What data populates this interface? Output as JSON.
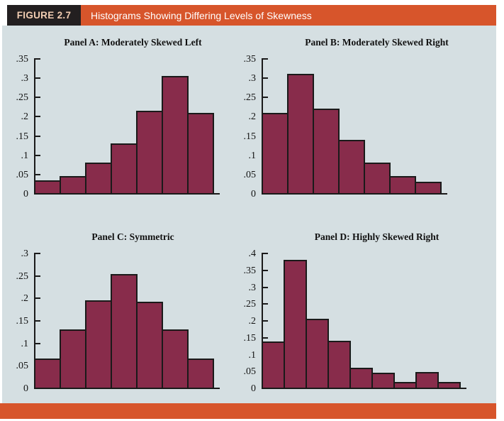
{
  "header": {
    "figure_label": "FIGURE 2.7",
    "title": "Histograms Showing Differing Levels of Skewness"
  },
  "colors": {
    "header_bg": "#231F20",
    "accent_orange": "#D7552B",
    "figure_label_text": "#F2CDB2",
    "title_text": "#FFFFFF",
    "content_bg": "#D5DFE2",
    "bar_fill": "#882C4B",
    "line_color": "#1A1A1A"
  },
  "chart_data": [
    {
      "type": "bar",
      "panel_id": "A",
      "title": "Panel A: Moderately Skewed Left",
      "values": [
        0.03,
        0.04,
        0.075,
        0.125,
        0.21,
        0.3,
        0.205
      ],
      "ylim": [
        0,
        0.35
      ],
      "ytick_labels": [
        ".35",
        ".3",
        ".25",
        ".2",
        ".15",
        ".1",
        ".05",
        "0"
      ],
      "ytick_values": [
        0.35,
        0.3,
        0.25,
        0.2,
        0.15,
        0.1,
        0.05,
        0
      ],
      "xlabel": "",
      "ylabel": "",
      "grid": false,
      "legend": "none"
    },
    {
      "type": "bar",
      "panel_id": "B",
      "title": "Panel B: Moderately Skewed Right",
      "values": [
        0.205,
        0.305,
        0.215,
        0.135,
        0.075,
        0.04,
        0.026
      ],
      "ylim": [
        0,
        0.35
      ],
      "ytick_labels": [
        ".35",
        ".3",
        ".25",
        ".2",
        ".15",
        ".1",
        ".05",
        "0"
      ],
      "ytick_values": [
        0.35,
        0.3,
        0.25,
        0.2,
        0.15,
        0.1,
        0.05,
        0
      ],
      "xlabel": "",
      "ylabel": "",
      "grid": false,
      "legend": "none"
    },
    {
      "type": "bar",
      "panel_id": "C",
      "title": "Panel C: Symmetric",
      "values": [
        0.062,
        0.127,
        0.191,
        0.25,
        0.188,
        0.127,
        0.062
      ],
      "ylim": [
        0,
        0.3
      ],
      "ytick_labels": [
        ".3",
        ".25",
        ".2",
        ".15",
        ".1",
        ".05",
        "0"
      ],
      "ytick_values": [
        0.3,
        0.25,
        0.2,
        0.15,
        0.1,
        0.05,
        0
      ],
      "xlabel": "",
      "ylabel": "",
      "grid": false,
      "legend": "none"
    },
    {
      "type": "bar",
      "panel_id": "D",
      "title": "Panel D: Highly Skewed Right",
      "values": [
        0.133,
        0.375,
        0.2,
        0.135,
        0.055,
        0.04,
        0.012,
        0.042,
        0.013
      ],
      "ylim": [
        0,
        0.4
      ],
      "ytick_labels": [
        ".4",
        ".35",
        ".3",
        ".25",
        ".2",
        ".15",
        ".1",
        ".05",
        "0"
      ],
      "ytick_values": [
        0.4,
        0.35,
        0.3,
        0.25,
        0.2,
        0.15,
        0.1,
        0.05,
        0
      ],
      "xlabel": "",
      "ylabel": "",
      "grid": false,
      "legend": "none"
    }
  ]
}
